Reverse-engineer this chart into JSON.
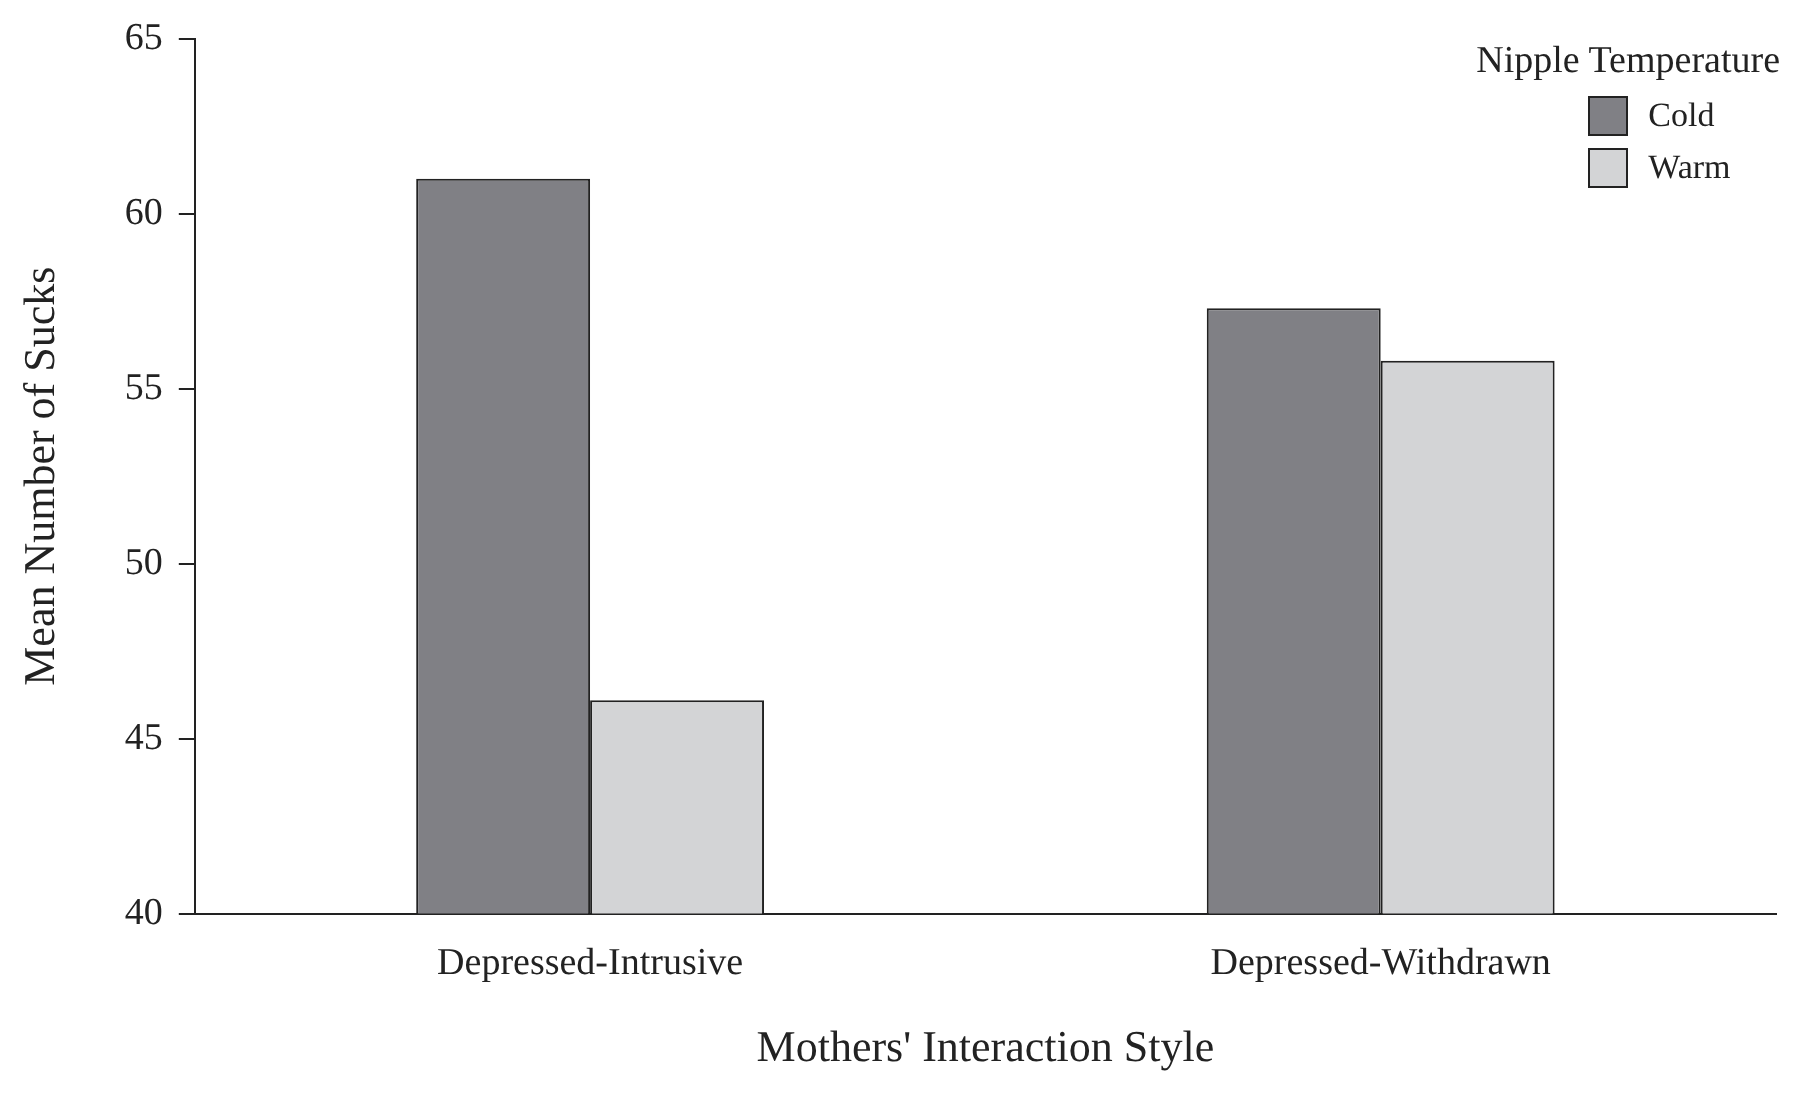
{
  "chart_data": {
    "type": "bar",
    "xlabel": "Mothers' Interaction Style",
    "ylabel": "Mean Number of Sucks",
    "legend_title": "Nipple Temperature",
    "categories": [
      "Depressed-Intrusive",
      "Depressed-Withdrawn"
    ],
    "series": [
      {
        "name": "Cold",
        "color": "#808085",
        "values": [
          61.0,
          57.3
        ]
      },
      {
        "name": "Warm",
        "color": "#d3d4d6",
        "values": [
          46.1,
          55.8
        ]
      }
    ],
    "ylim": [
      40,
      65
    ],
    "yticks": [
      40,
      45,
      50,
      55,
      60,
      65
    ],
    "grid": false,
    "legend": "top right"
  }
}
